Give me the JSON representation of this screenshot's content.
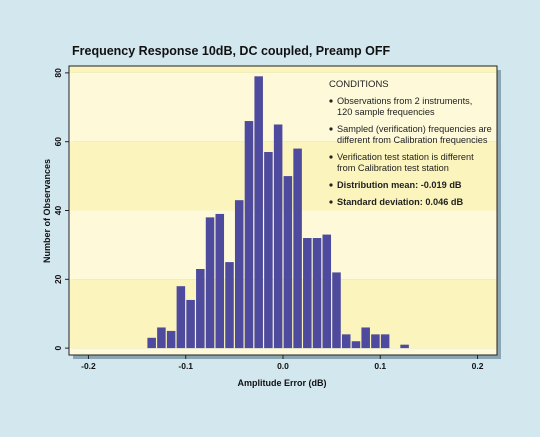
{
  "chart_data": {
    "type": "bar",
    "title": "Frequency Response 10dB, DC coupled, Preamp OFF",
    "xlabel": "Amplitude Error (dB)",
    "ylabel": "Number of Observances",
    "xlim": [
      -0.22,
      0.22
    ],
    "ylim": [
      -2,
      82
    ],
    "x_ticks": [
      -0.2,
      -0.1,
      0.0,
      0.1,
      0.2
    ],
    "x_tick_labels": [
      "-0.2",
      "-0.1",
      "0.0",
      "0.1",
      "0.2"
    ],
    "y_ticks": [
      0,
      20,
      40,
      60,
      80
    ],
    "y_tick_labels": [
      "0",
      "20",
      "40",
      "60",
      "80"
    ],
    "bin_width": 0.01,
    "bins": [
      {
        "x": -0.135,
        "value": 3
      },
      {
        "x": -0.125,
        "value": 6
      },
      {
        "x": -0.115,
        "value": 5
      },
      {
        "x": -0.105,
        "value": 18
      },
      {
        "x": -0.095,
        "value": 14
      },
      {
        "x": -0.085,
        "value": 23
      },
      {
        "x": -0.075,
        "value": 38
      },
      {
        "x": -0.065,
        "value": 39
      },
      {
        "x": -0.055,
        "value": 25
      },
      {
        "x": -0.045,
        "value": 43
      },
      {
        "x": -0.035,
        "value": 66
      },
      {
        "x": -0.025,
        "value": 79
      },
      {
        "x": -0.015,
        "value": 57
      },
      {
        "x": -0.005,
        "value": 65
      },
      {
        "x": 0.005,
        "value": 50
      },
      {
        "x": 0.015,
        "value": 58
      },
      {
        "x": 0.025,
        "value": 32
      },
      {
        "x": 0.035,
        "value": 32
      },
      {
        "x": 0.045,
        "value": 33
      },
      {
        "x": 0.055,
        "value": 22
      },
      {
        "x": 0.065,
        "value": 4
      },
      {
        "x": 0.075,
        "value": 2
      },
      {
        "x": 0.085,
        "value": 6
      },
      {
        "x": 0.095,
        "value": 4
      },
      {
        "x": 0.105,
        "value": 4
      },
      {
        "x": 0.125,
        "value": 1
      }
    ],
    "band_colors": [
      "#fbf4bd",
      "#fdf9d9"
    ],
    "bar_color": "#4e4a9d",
    "annotation": {
      "heading": "CONDITIONS",
      "bullets": [
        {
          "lines": [
            "Observations from 2 instruments,",
            "120 sample frequencies"
          ],
          "bold": false
        },
        {
          "lines": [
            "Sampled (verification) frequencies are",
            "different from Calibration frequencies"
          ],
          "bold": false
        },
        {
          "lines": [
            "Verification test station is different",
            "from Calibration test station"
          ],
          "bold": false
        },
        {
          "lines": [
            "Distribution mean: -0.019 dB"
          ],
          "bold": true
        },
        {
          "lines": [
            "Standard deviation: 0.046 dB"
          ],
          "bold": true
        }
      ]
    }
  }
}
